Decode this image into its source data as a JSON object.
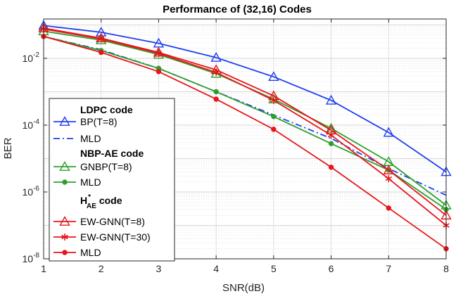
{
  "chart_data": {
    "type": "line",
    "title": "Performance of (32,16) Codes",
    "xlabel": "SNR(dB)",
    "ylabel": "BER",
    "yscale": "log",
    "xlim": [
      1,
      8
    ],
    "ylim": [
      1e-08,
      0.15
    ],
    "grid": true,
    "x": [
      1,
      2,
      3,
      4,
      5,
      6,
      7,
      8
    ],
    "x_ticks": [
      "1",
      "2",
      "3",
      "4",
      "5",
      "6",
      "7",
      "8"
    ],
    "y_ticks": [
      {
        "base": "10",
        "exp": "-8",
        "value": 1e-08
      },
      {
        "base": "10",
        "exp": "-6",
        "value": 1e-06
      },
      {
        "base": "10",
        "exp": "-4",
        "value": 0.0001
      },
      {
        "base": "10",
        "exp": "-2",
        "value": 0.01
      }
    ],
    "legend_position": "left",
    "series": [
      {
        "name": "BP(T=8)",
        "group": "LDPC code",
        "color": "#1f3ff0",
        "dash": "none",
        "marker": "triangle",
        "values": [
          0.095,
          0.06,
          0.028,
          0.0105,
          0.0028,
          0.00055,
          6e-05,
          4e-06
        ]
      },
      {
        "name": "MLD",
        "group": "LDPC code",
        "color": "#1f3ff0",
        "dash": "dashdot",
        "marker": "none",
        "values": [
          0.045,
          0.018,
          0.005,
          0.001,
          0.0002,
          4e-05,
          5e-06,
          8e-07
        ]
      },
      {
        "name": "GNBP(T=8)",
        "group": "NBP-AE code",
        "color": "#2ca02c",
        "dash": "none",
        "marker": "triangle",
        "values": [
          0.065,
          0.035,
          0.013,
          0.0035,
          0.0006,
          8e-05,
          8e-06,
          4e-07
        ]
      },
      {
        "name": "MLD",
        "group": "NBP-AE code",
        "color": "#2ca02c",
        "dash": "none",
        "marker": "dot",
        "values": [
          0.045,
          0.017,
          0.005,
          0.001,
          0.00018,
          2.8e-05,
          4.5e-06,
          3e-07
        ]
      },
      {
        "name": "EW-GNN(T=8)",
        "group": "H_AE* code",
        "color": "#e8151b",
        "dash": "none",
        "marker": "triangle",
        "values": [
          0.08,
          0.04,
          0.015,
          0.0045,
          0.00075,
          7e-05,
          4.5e-06,
          2e-07
        ]
      },
      {
        "name": "EW-GNN(T=30)",
        "group": "H_AE* code",
        "color": "#e8151b",
        "dash": "none",
        "marker": "star",
        "values": [
          0.075,
          0.038,
          0.014,
          0.0038,
          0.00055,
          5e-05,
          2.5e-06,
          1e-07
        ]
      },
      {
        "name": "MLD",
        "group": "H_AE* code",
        "color": "#e8151b",
        "dash": "none",
        "marker": "dot",
        "values": [
          0.045,
          0.015,
          0.004,
          0.0006,
          7.5e-05,
          5.5e-06,
          3.3e-07,
          2e-08
        ]
      }
    ],
    "legend": {
      "group1_header": "LDPC code",
      "group2_header": "NBP-AE code",
      "group3_header_main": "H",
      "group3_header_sup": "*",
      "group3_header_sub": "AE",
      "group3_header_tail": " code"
    }
  }
}
